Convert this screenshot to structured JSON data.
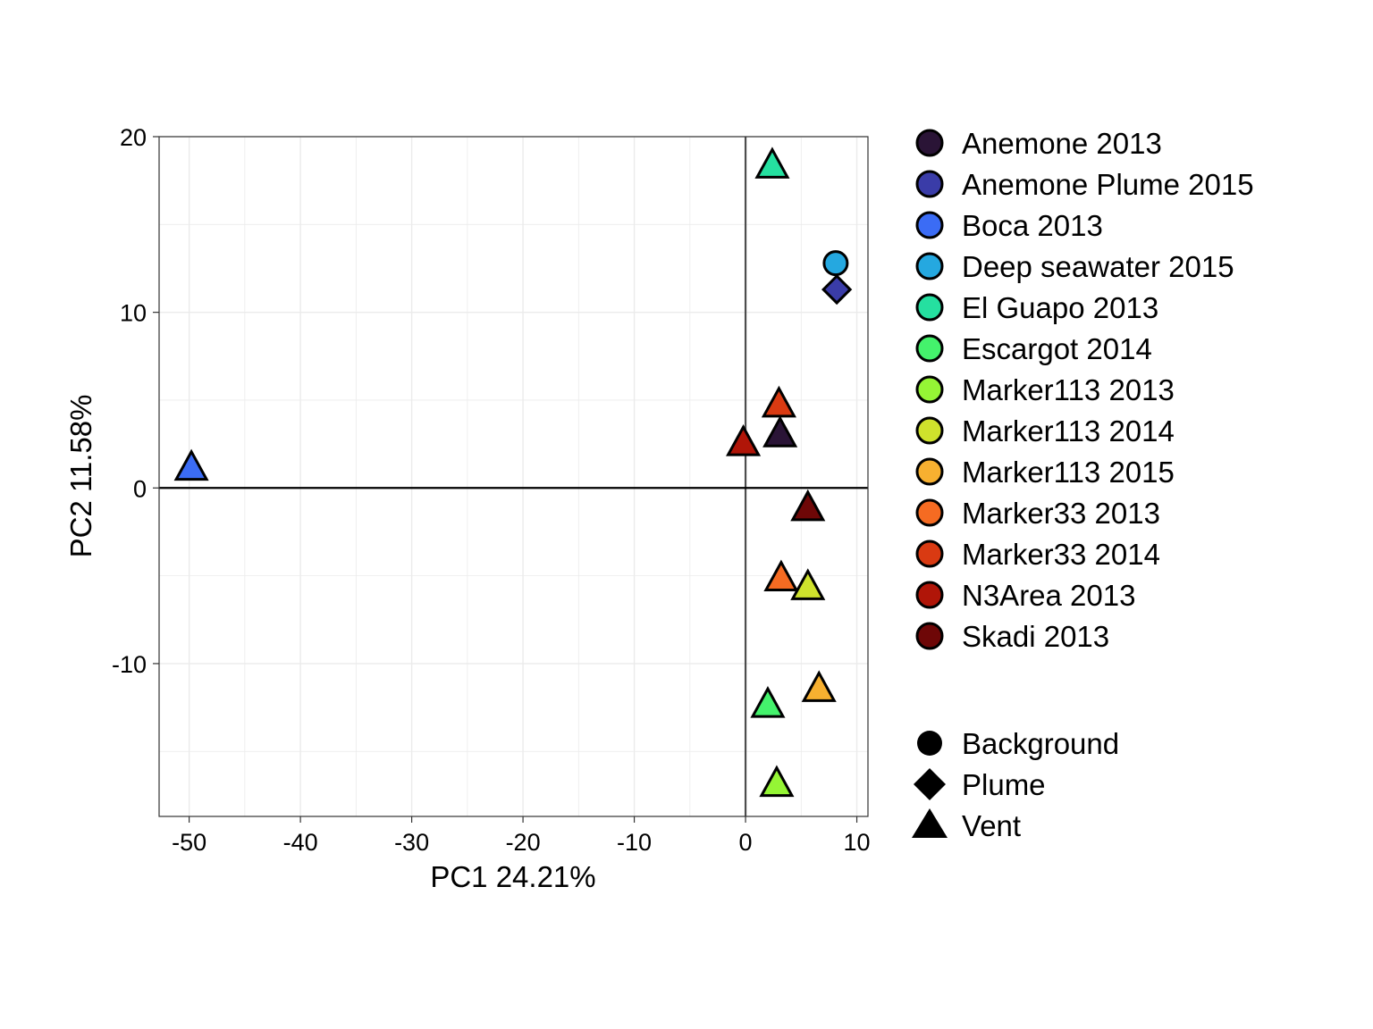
{
  "chart_data": {
    "type": "scatter",
    "xlabel": "PC1 24.21%",
    "ylabel": "PC2 11.58%",
    "xlim": [
      -52.7,
      11
    ],
    "ylim": [
      -18.7,
      20
    ],
    "xticks": [
      -50,
      -40,
      -30,
      -20,
      -10,
      0,
      10
    ],
    "yticks": [
      -10,
      0,
      10,
      20
    ],
    "grid": true,
    "reference_lines": {
      "x": 0,
      "y": 0
    },
    "legend_position": "right",
    "colors": {
      "Anemone 2013": "#2a1436",
      "Anemone Plume 2015": "#3a3ca8",
      "Boca 2013": "#3b6cf5",
      "Deep seawater 2015": "#25a8e0",
      "El Guapo 2013": "#25e0a0",
      "Escargot 2014": "#44f26c",
      "Marker113 2013": "#95f535",
      "Marker113 2014": "#cfe22c",
      "Marker113 2015": "#f7b030",
      "Marker33 2013": "#f56b22",
      "Marker33 2014": "#d93a12",
      "N3Area 2013": "#b01508",
      "Skadi 2013": "#6e0707"
    },
    "color_legend": [
      "Anemone 2013",
      "Anemone Plume 2015",
      "Boca 2013",
      "Deep seawater 2015",
      "El Guapo 2013",
      "Escargot 2014",
      "Marker113 2013",
      "Marker113 2014",
      "Marker113 2015",
      "Marker33 2013",
      "Marker33 2014",
      "N3Area 2013",
      "Skadi 2013"
    ],
    "shape_legend": [
      {
        "label": "Background",
        "shape": "circle"
      },
      {
        "label": "Plume",
        "shape": "diamond"
      },
      {
        "label": "Vent",
        "shape": "triangle"
      }
    ],
    "points": [
      {
        "site": "El Guapo 2013",
        "type": "Vent",
        "x": 2.4,
        "y": 18.4
      },
      {
        "site": "Deep seawater 2015",
        "type": "Background",
        "x": 8.1,
        "y": 12.8
      },
      {
        "site": "Anemone Plume 2015",
        "type": "Plume",
        "x": 8.2,
        "y": 11.3
      },
      {
        "site": "Marker33 2014",
        "type": "Vent",
        "x": 3.0,
        "y": 4.8
      },
      {
        "site": "Anemone 2013",
        "type": "Vent",
        "x": 3.1,
        "y": 3.1
      },
      {
        "site": "N3Area 2013",
        "type": "Vent",
        "x": -0.2,
        "y": 2.6
      },
      {
        "site": "Boca 2013",
        "type": "Vent",
        "x": -49.8,
        "y": 1.2
      },
      {
        "site": "Skadi 2013",
        "type": "Vent",
        "x": 5.6,
        "y": -1.1
      },
      {
        "site": "Marker33 2013",
        "type": "Vent",
        "x": 3.2,
        "y": -5.1
      },
      {
        "site": "Marker113 2014",
        "type": "Vent",
        "x": 5.6,
        "y": -5.6
      },
      {
        "site": "Marker113 2015",
        "type": "Vent",
        "x": 6.6,
        "y": -11.4
      },
      {
        "site": "Escargot 2014",
        "type": "Vent",
        "x": 2.0,
        "y": -12.3
      },
      {
        "site": "Marker113 2013",
        "type": "Vent",
        "x": 2.8,
        "y": -16.8
      }
    ]
  }
}
